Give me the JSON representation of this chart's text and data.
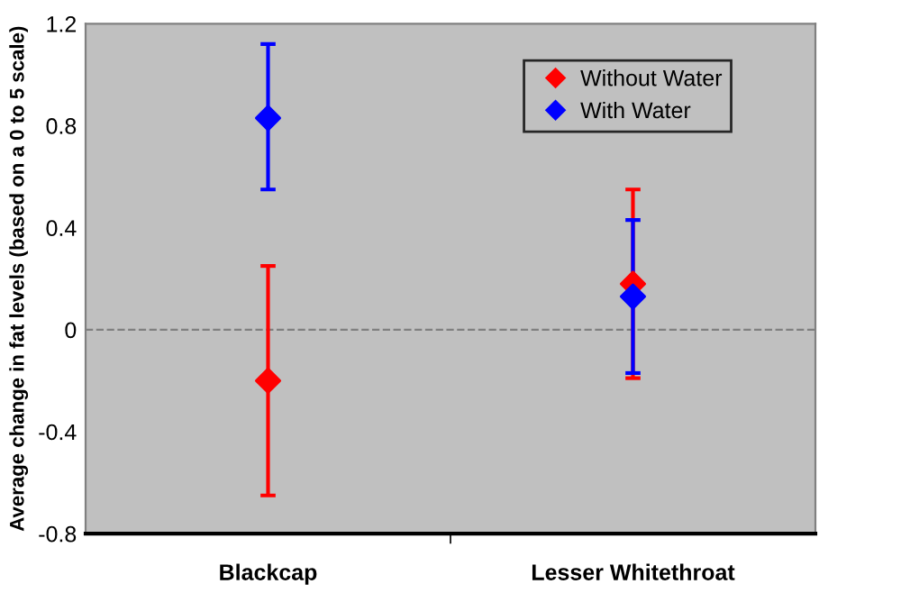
{
  "chart_data": {
    "type": "scatter",
    "ylabel": "Average change in fat levels (based on a 0 to 5 scale)",
    "categories": [
      "Blackcap",
      "Lesser Whitethroat"
    ],
    "series": [
      {
        "name": "Without Water",
        "color": "#ff0000",
        "values": [
          -0.2,
          0.18
        ],
        "errors": [
          [
            -0.65,
            0.25
          ],
          [
            -0.19,
            0.55
          ]
        ]
      },
      {
        "name": "With Water",
        "color": "#0000ff",
        "values": [
          0.83,
          0.13
        ],
        "errors": [
          [
            0.55,
            1.12
          ],
          [
            -0.17,
            0.43
          ]
        ]
      }
    ],
    "ylim": [
      -0.8,
      1.2
    ],
    "yticks": [
      {
        "value": -0.8,
        "label": "-0.8"
      },
      {
        "value": -0.4,
        "label": "-0.4"
      },
      0,
      0.4,
      0.8,
      1.2
    ],
    "ref_lines": [
      {
        "axis": "y",
        "value": 0,
        "label": null,
        "color": "#808080",
        "line_style": "dashed"
      }
    ],
    "marker": "diamond",
    "legend": "top right",
    "grid": false
  }
}
